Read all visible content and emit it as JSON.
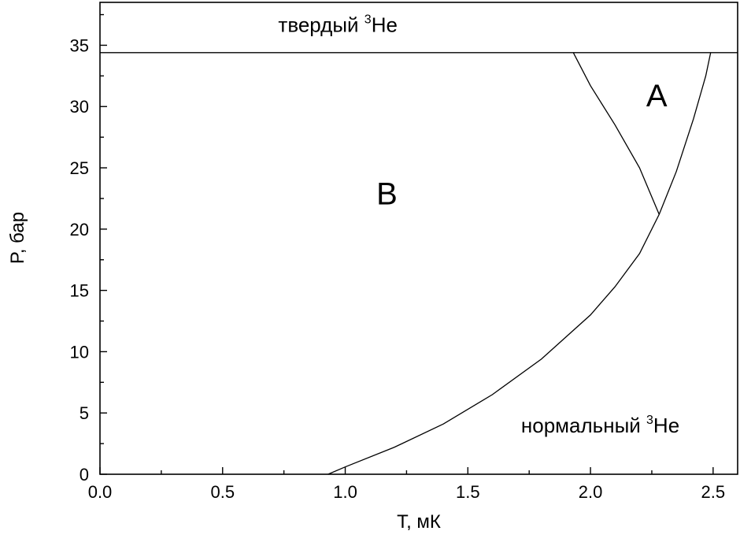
{
  "chart_data": {
    "type": "line",
    "title": "",
    "xlabel": "T, мК",
    "ylabel": "P, бар",
    "xlim": [
      0.0,
      2.6
    ],
    "ylim": [
      0,
      38.5
    ],
    "grid": false,
    "x_ticks": [
      {
        "value": 0.0,
        "label": "0.0"
      },
      {
        "value": 0.5,
        "label": "0.5"
      },
      {
        "value": 1.0,
        "label": "1.0"
      },
      {
        "value": 1.5,
        "label": "1.5"
      },
      {
        "value": 2.0,
        "label": "2.0"
      },
      {
        "value": 2.5,
        "label": "2.5"
      }
    ],
    "y_ticks": [
      {
        "value": 0,
        "label": "0"
      },
      {
        "value": 5,
        "label": "5"
      },
      {
        "value": 10,
        "label": "10"
      },
      {
        "value": 15,
        "label": "15"
      },
      {
        "value": 20,
        "label": "20"
      },
      {
        "value": 25,
        "label": "25"
      },
      {
        "value": 30,
        "label": "30"
      },
      {
        "value": 35,
        "label": "35"
      }
    ],
    "series": [
      {
        "x": [
          0.0,
          2.6
        ],
        "y": [
          34.4,
          34.4
        ]
      },
      {
        "x": [
          0.93,
          1.0,
          1.2,
          1.4,
          1.6,
          1.8,
          2.0,
          2.1,
          2.2,
          2.28,
          2.35,
          2.42,
          2.47,
          2.49
        ],
        "y": [
          0.0,
          0.6,
          2.2,
          4.1,
          6.5,
          9.4,
          13.0,
          15.3,
          18.0,
          21.2,
          24.7,
          29.0,
          32.5,
          34.4
        ]
      },
      {
        "x": [
          1.93,
          2.0,
          2.1,
          2.2,
          2.28
        ],
        "y": [
          34.4,
          31.7,
          28.5,
          25.0,
          21.2
        ]
      }
    ],
    "annotations": [
      {
        "text": "B",
        "x": 1.17,
        "y": 22.0,
        "size": "large"
      },
      {
        "text": "A",
        "x": 2.27,
        "y": 30.0,
        "size": "large"
      },
      {
        "text": "твердый ",
        "sup": "3",
        "suffix": "He",
        "x": 0.97,
        "y": 36.1
      },
      {
        "text": "нормальный ",
        "sup": "3",
        "suffix": "He",
        "x": 2.04,
        "y": 3.4
      }
    ]
  }
}
